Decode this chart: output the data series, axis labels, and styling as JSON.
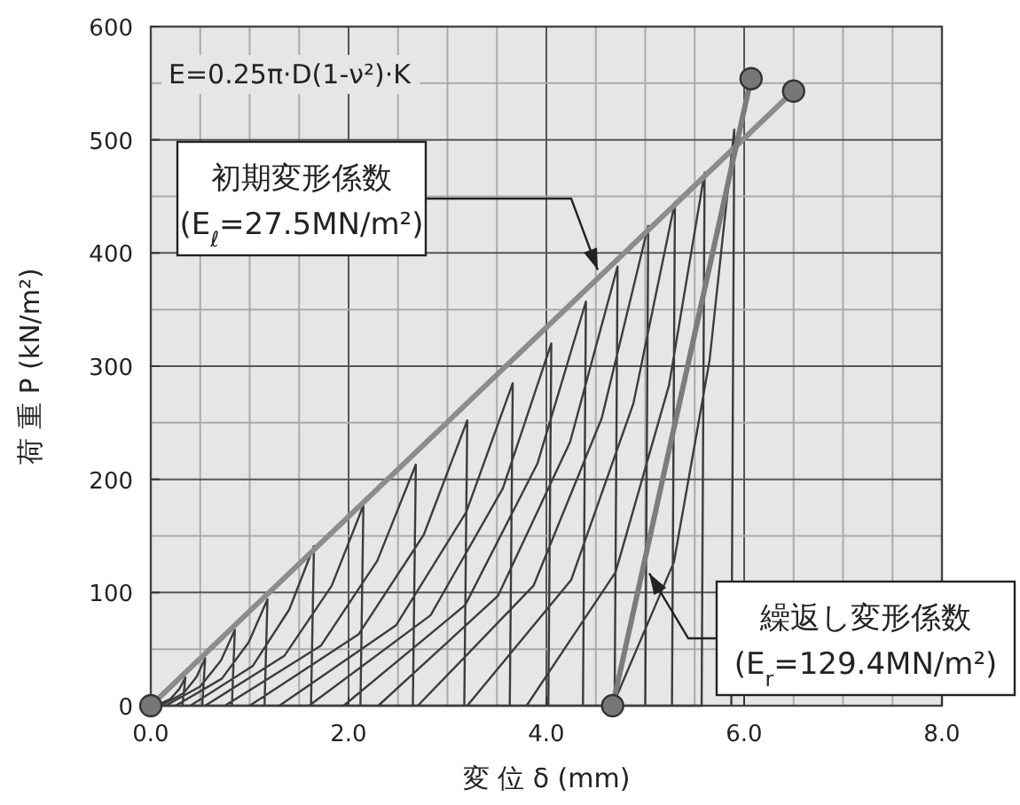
{
  "chart_data": {
    "type": "line",
    "xlabel": "変 位 δ (mm)",
    "ylabel": "荷 重 P (kN/m²)",
    "xlim": [
      0,
      8
    ],
    "ylim": [
      0,
      600
    ],
    "xticks": [
      {
        "value": 0,
        "label": "0.0"
      },
      {
        "value": 2,
        "label": "2.0"
      },
      {
        "value": 4,
        "label": "4.0"
      },
      {
        "value": 6,
        "label": "6.0"
      },
      {
        "value": 8,
        "label": "8.0"
      }
    ],
    "yticks": [
      0,
      100,
      200,
      300,
      400,
      500,
      600
    ],
    "grid": true,
    "series": [
      {
        "color": "#3c3c3c",
        "marker": "none",
        "x": [
          0.05,
          0.2,
          0.29,
          0.35,
          0.32,
          0.1,
          0.33,
          0.46,
          0.55,
          0.52,
          0.15,
          0.5,
          0.71,
          0.85,
          0.82,
          0.25,
          0.72,
          0.99,
          1.18,
          1.15,
          0.4,
          1.03,
          1.4,
          1.65,
          1.62,
          0.55,
          1.35,
          1.83,
          2.15,
          2.12,
          0.75,
          1.72,
          2.29,
          2.68,
          2.65,
          1.0,
          2.1,
          2.76,
          3.2,
          3.17,
          1.3,
          2.48,
          3.19,
          3.66,
          3.63,
          1.6,
          2.83,
          3.56,
          4.05,
          4.02,
          1.95,
          3.18,
          3.91,
          4.4,
          4.37,
          2.3,
          3.51,
          4.24,
          4.72,
          4.69,
          2.7,
          3.87,
          4.56,
          5.03,
          5.0,
          3.2,
          4.25,
          4.88,
          5.3,
          5.27,
          3.8,
          4.7,
          5.24,
          5.6,
          5.57,
          4.67,
          5.29,
          5.65,
          5.9,
          5.87
        ],
        "values": [
          0,
          6,
          15,
          25,
          0,
          0,
          11,
          25,
          42,
          0,
          0,
          17,
          40,
          67,
          0,
          0,
          24,
          56,
          94,
          0,
          0,
          35,
          85,
          141,
          0,
          0,
          44,
          106,
          177,
          0,
          0,
          53,
          128,
          213,
          0,
          0,
          63,
          151,
          252,
          0,
          0,
          71,
          171,
          285,
          0,
          0,
          80,
          192,
          320,
          0,
          0,
          89,
          214,
          357,
          0,
          0,
          97,
          233,
          388,
          0,
          0,
          106,
          254,
          424,
          0,
          0,
          111,
          267,
          445,
          0,
          0,
          118,
          283,
          471,
          0,
          0,
          127,
          305,
          509,
          0
        ]
      },
      {
        "color": "#8c8c8c",
        "marker": "circle",
        "x": [
          0,
          6.5
        ],
        "values": [
          0,
          543
        ]
      },
      {
        "color": "#7c7c7c",
        "marker": "circle",
        "x": [
          4.67,
          6.07
        ],
        "values": [
          0,
          554
        ]
      }
    ],
    "annotations": [
      "E=0.25π·D(1-ν²)·K",
      {
        "text": "初期変形係数\n(E$_{ℓ}$=27.5MN/m²)",
        "x": 4.52,
        "y": 385
      },
      {
        "text": "繰返し変形係数\n(E$_{r}$=129.4MN/m²)",
        "x": 5.04,
        "y": 117
      }
    ]
  }
}
